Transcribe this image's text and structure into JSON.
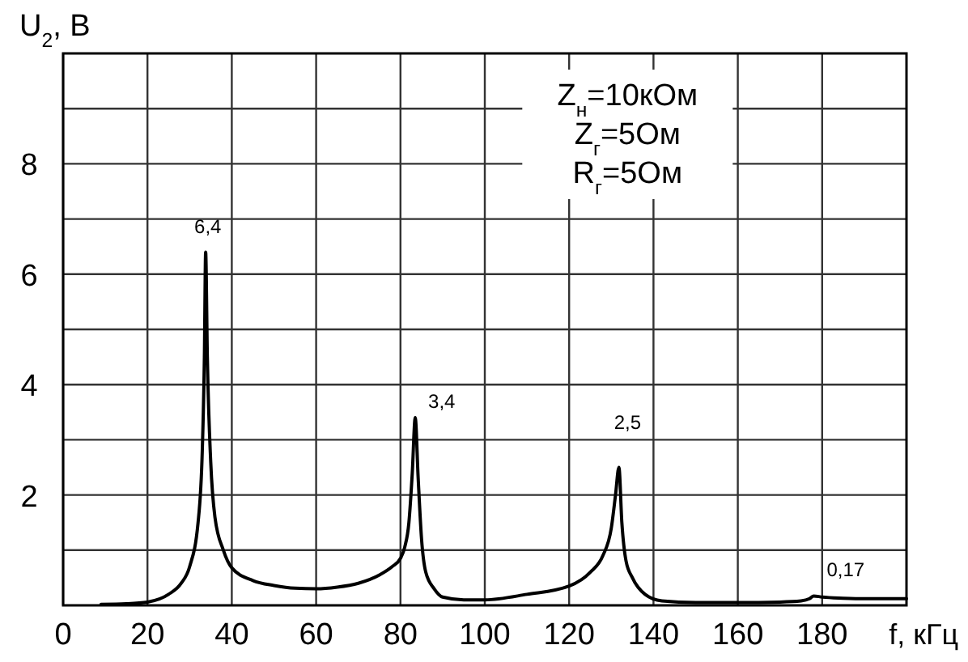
{
  "chart_data": {
    "type": "line",
    "ylabel": "U$_{2}$, В",
    "xlabel": "f, кГц",
    "xlim": [
      0,
      200
    ],
    "ylim": [
      0,
      10
    ],
    "xticks": [
      0,
      20,
      40,
      60,
      80,
      100,
      120,
      140,
      160,
      180
    ],
    "yticks": [
      {
        "value": 1,
        "label": null
      },
      2,
      {
        "value": 3,
        "label": null
      },
      4,
      {
        "value": 5,
        "label": null
      },
      6,
      {
        "value": 7,
        "label": null
      },
      8,
      {
        "value": 9,
        "label": null
      }
    ],
    "grid": true,
    "line_style": "solid",
    "series": [
      {
        "color": "#000000",
        "x": [
          9,
          15,
          20,
          25,
          28,
          30,
          32,
          33,
          33.5,
          33.8,
          34.2,
          35,
          36,
          38,
          40,
          45,
          50,
          55,
          60,
          65,
          70,
          75,
          78,
          80,
          81,
          82,
          82.8,
          83.5,
          84.2,
          85,
          86,
          88,
          90,
          95,
          100,
          110,
          120,
          125,
          128,
          130,
          131,
          131.8,
          132.5,
          133.5,
          135,
          138,
          142,
          150,
          160,
          170,
          175,
          177,
          178,
          180,
          185,
          190,
          200
        ],
        "values": [
          0.02,
          0.03,
          0.06,
          0.2,
          0.4,
          0.7,
          1.5,
          2.8,
          4.5,
          6.4,
          4.5,
          2.6,
          1.6,
          1.0,
          0.68,
          0.45,
          0.36,
          0.31,
          0.3,
          0.33,
          0.4,
          0.55,
          0.7,
          0.85,
          1.05,
          1.5,
          2.4,
          3.4,
          2.3,
          1.2,
          0.6,
          0.3,
          0.15,
          0.1,
          0.1,
          0.2,
          0.35,
          0.6,
          0.9,
          1.4,
          2.0,
          2.5,
          1.5,
          0.8,
          0.5,
          0.2,
          0.08,
          0.05,
          0.05,
          0.06,
          0.08,
          0.12,
          0.17,
          0.15,
          0.13,
          0.12,
          0.12
        ]
      }
    ],
    "annotations": [
      {
        "text": "6,4",
        "x": 33.8,
        "y": 6.4
      },
      {
        "text": "3,4",
        "x": 83.5,
        "y": 3.4
      },
      {
        "text": "2,5",
        "x": 131.8,
        "y": 2.5
      },
      {
        "text": "0,17",
        "x": 178,
        "y": 0.17
      },
      "Z$_{н}$=10кОм",
      "Z$_{г}$=5Ом",
      "R$_{г}$=5Ом"
    ]
  }
}
